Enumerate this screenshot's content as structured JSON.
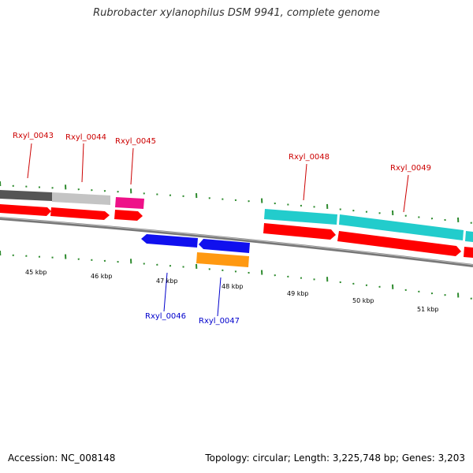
{
  "title": "Rubrobacter xylanophilus DSM 9941, complete genome",
  "accession": "Accession: NC_008148",
  "summary": "Topology: circular; Length: 3,225,748 bp; Genes: 3,203",
  "colors": {
    "forward_label": "#cc0000",
    "reverse_label": "#0000cc",
    "backbone": "#888888",
    "ticks": "#2e8b2e",
    "cds": "#ff0000",
    "gene_dark_gray": "#555555",
    "gene_light_gray": "#c0c0c0",
    "gene_pink": "#ee1188",
    "gene_cyan": "#22cccc",
    "gene_blue": "#1010ee",
    "gene_orange": "#ff9911"
  },
  "kbp_labels": [
    "45 kbp",
    "46 kbp",
    "47 kbp",
    "48 kbp",
    "49 kbp",
    "50 kbp",
    "51 kbp"
  ],
  "gene_labels": {
    "rxyl_0043": "Rxyl_0043",
    "rxyl_0044": "Rxyl_0044",
    "rxyl_0045": "Rxyl_0045",
    "rxyl_0046": "Rxyl_0046",
    "rxyl_0047": "Rxyl_0047",
    "rxyl_0048": "Rxyl_0048",
    "rxyl_0049": "Rxyl_0049"
  }
}
